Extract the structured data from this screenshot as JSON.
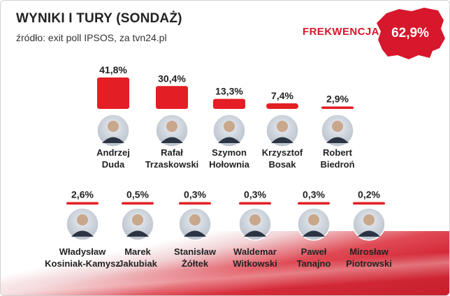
{
  "header": {
    "title": "WYNIKI I TURY (SONDAŻ)",
    "source": "źródło: exit poll IPSOS, za tvn24.pl"
  },
  "turnout": {
    "label": "FREKWENCJA",
    "value": "62,9%"
  },
  "colors": {
    "accent": "#d7172b",
    "bar": "#e31e24",
    "text": "#222222"
  },
  "chart_data": {
    "type": "bar",
    "title": "WYNIKI I TURY (SONDAŻ)",
    "categories": [
      "Andrzej Duda",
      "Rafał Trzaskowski",
      "Szymon Hołownia",
      "Krzysztof Bosak",
      "Robert Biedroń",
      "Władysław Kosiniak-Kamysz",
      "Marek Jakubiak",
      "Stanisław Żółtek",
      "Waldemar Witkowski",
      "Paweł Tanajno",
      "Mirosław Piotrowski"
    ],
    "values": [
      41.8,
      30.4,
      13.3,
      7.4,
      2.9,
      2.6,
      0.5,
      0.3,
      0.3,
      0.3,
      0.2
    ],
    "value_labels": [
      "41,8%",
      "30,4%",
      "13,3%",
      "7,4%",
      "2,9%",
      "2,6%",
      "0,5%",
      "0,3%",
      "0,3%",
      "0,3%",
      "0,2%"
    ],
    "name_lines": [
      [
        "Andrzej",
        "Duda"
      ],
      [
        "Rafał",
        "Trzaskowski"
      ],
      [
        "Szymon",
        "Hołownia"
      ],
      [
        "Krzysztof",
        "Bosak"
      ],
      [
        "Robert",
        "Biedroń"
      ],
      [
        "Władysław",
        "Kosiniak-Kamysz"
      ],
      [
        "Marek",
        "Jakubiak"
      ],
      [
        "Stanisław",
        "Żółtek"
      ],
      [
        "Waldemar",
        "Witkowski"
      ],
      [
        "Paweł",
        "Tanajno"
      ],
      [
        "Mirosław",
        "Piotrowski"
      ]
    ],
    "rows": [
      [
        0,
        1,
        2,
        3,
        4
      ],
      [
        5,
        6,
        7,
        8,
        9,
        10
      ]
    ],
    "unit": "%",
    "ylim": [
      0,
      45
    ],
    "legend": "none",
    "grid": false
  }
}
